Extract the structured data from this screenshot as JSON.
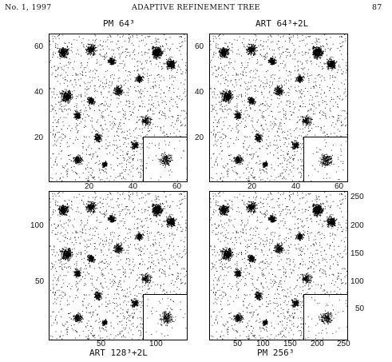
{
  "header": {
    "left": "No. 1, 1997",
    "center": "ADAPTIVE REFINEMENT TREE",
    "right": "87"
  },
  "panels": [
    {
      "title": "PM 64³",
      "x_ticks": [
        "20",
        "40",
        "60"
      ],
      "y_ticks": [
        "60",
        "40",
        "20"
      ]
    },
    {
      "title": "ART 64³+2L",
      "x_ticks": [
        "20",
        "40",
        "60"
      ],
      "y_ticks": [
        "60",
        "40",
        "20"
      ]
    },
    {
      "title": "ART 128³+2L",
      "x_ticks": [
        "50",
        "100"
      ],
      "y_ticks": [
        "100",
        "50"
      ]
    },
    {
      "title": "PM 256³",
      "x_ticks": [
        "50",
        "100",
        "150",
        "200",
        "250"
      ],
      "y_ticks": [
        "250",
        "200",
        "150",
        "100",
        "50"
      ]
    }
  ]
}
